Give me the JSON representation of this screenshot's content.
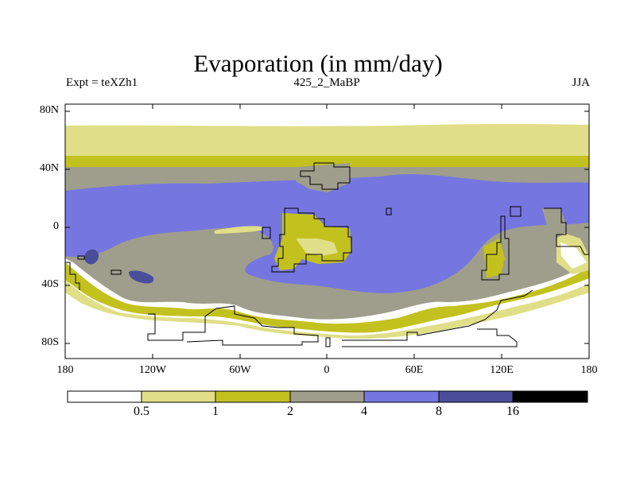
{
  "title": "Evaporation (in mm/day)",
  "left_label": "Expt = teXZh1",
  "center_label": "425_2_MaBP",
  "right_label": "JJA",
  "y_ticks": [
    "80N",
    "40N",
    "0",
    "40S",
    "80S"
  ],
  "x_ticks": [
    "180",
    "120W",
    "60W",
    "0",
    "60E",
    "120E",
    "180"
  ],
  "colorbar": {
    "levels": [
      "0.5",
      "1",
      "2",
      "4",
      "8",
      "16"
    ],
    "colors": [
      "#ffffff",
      "#e0df88",
      "#c3c11e",
      "#9f9e8c",
      "#7676e0",
      "#4a4e9a",
      "#000000"
    ]
  }
}
